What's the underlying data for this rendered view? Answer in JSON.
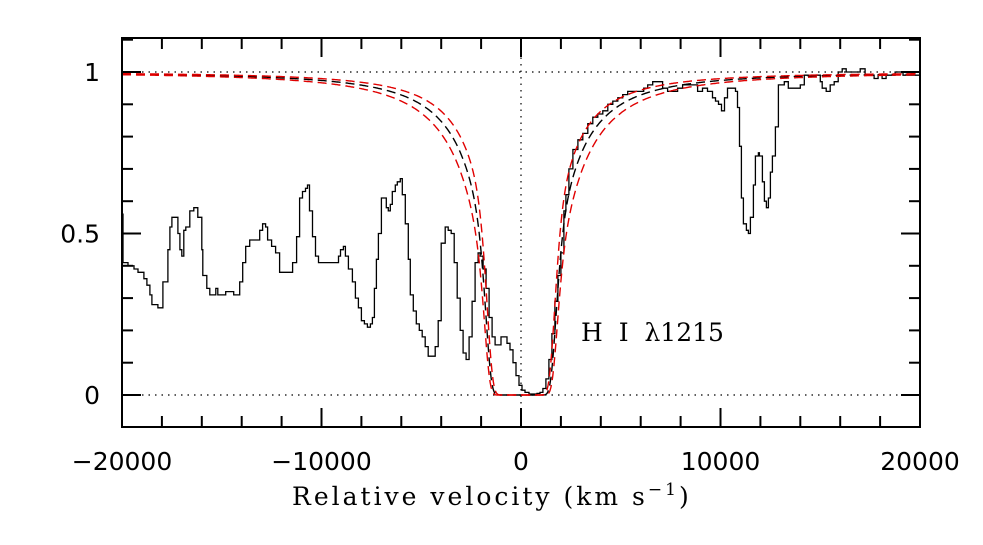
{
  "chart_data": {
    "type": "line",
    "title": "",
    "xlabel": "Relative velocity (km s",
    "xlabel_sup": "−1",
    "xlabel_close": ")",
    "ylabel": "",
    "xlim": [
      -20000,
      20000
    ],
    "ylim": [
      -0.1,
      1.1
    ],
    "x_major_ticks": [
      -20000,
      -10000,
      0,
      10000,
      20000
    ],
    "x_tick_labels": [
      "−20000",
      "−10000",
      "0",
      "10000",
      "20000"
    ],
    "x_minor_step": 2000,
    "y_major_ticks": [
      0,
      0.5,
      1
    ],
    "y_tick_labels": [
      "0",
      "0.5",
      "1"
    ],
    "y_minor_step": 0.1,
    "reference_lines": {
      "horizontal": [
        0,
        1
      ],
      "vertical": [
        0
      ],
      "style": "dotted"
    },
    "annotation": "H  I  λ1215",
    "annotation_position": "lower-middle-right",
    "grid": false,
    "legend": null,
    "series": [
      {
        "name": "observed spectrum",
        "style": "histogram",
        "color": "#000000",
        "points": [
          [
            -20000,
            0.56
          ],
          [
            -19950,
            0.41
          ],
          [
            -19700,
            0.4
          ],
          [
            -19400,
            0.39
          ],
          [
            -19200,
            0.38
          ],
          [
            -18900,
            0.36
          ],
          [
            -18750,
            0.34
          ],
          [
            -18600,
            0.31
          ],
          [
            -18500,
            0.28
          ],
          [
            -18300,
            0.28
          ],
          [
            -18200,
            0.27
          ],
          [
            -17950,
            0.35
          ],
          [
            -17700,
            0.45
          ],
          [
            -17600,
            0.52
          ],
          [
            -17500,
            0.55
          ],
          [
            -17300,
            0.55
          ],
          [
            -17200,
            0.5
          ],
          [
            -17100,
            0.45
          ],
          [
            -17000,
            0.43
          ],
          [
            -16900,
            0.51
          ],
          [
            -16800,
            0.52
          ],
          [
            -16600,
            0.57
          ],
          [
            -16400,
            0.58
          ],
          [
            -16200,
            0.55
          ],
          [
            -16000,
            0.45
          ],
          [
            -15950,
            0.37
          ],
          [
            -15750,
            0.33
          ],
          [
            -15600,
            0.31
          ],
          [
            -15300,
            0.33
          ],
          [
            -15200,
            0.31
          ],
          [
            -14800,
            0.32
          ],
          [
            -14400,
            0.31
          ],
          [
            -14100,
            0.35
          ],
          [
            -13950,
            0.41
          ],
          [
            -13800,
            0.46
          ],
          [
            -13600,
            0.48
          ],
          [
            -13250,
            0.48
          ],
          [
            -13100,
            0.51
          ],
          [
            -12950,
            0.53
          ],
          [
            -12800,
            0.52
          ],
          [
            -12700,
            0.48
          ],
          [
            -12500,
            0.46
          ],
          [
            -12300,
            0.44
          ],
          [
            -12100,
            0.38
          ],
          [
            -11950,
            0.38
          ],
          [
            -11600,
            0.38
          ],
          [
            -11450,
            0.41
          ],
          [
            -11250,
            0.49
          ],
          [
            -11100,
            0.61
          ],
          [
            -10950,
            0.63
          ],
          [
            -10800,
            0.64
          ],
          [
            -10700,
            0.65
          ],
          [
            -10600,
            0.57
          ],
          [
            -10450,
            0.49
          ],
          [
            -10300,
            0.43
          ],
          [
            -10150,
            0.41
          ],
          [
            -9850,
            0.41
          ],
          [
            -9650,
            0.41
          ],
          [
            -9250,
            0.41
          ],
          [
            -9150,
            0.43
          ],
          [
            -9050,
            0.45
          ],
          [
            -8900,
            0.46
          ],
          [
            -8800,
            0.43
          ],
          [
            -8650,
            0.39
          ],
          [
            -8450,
            0.35
          ],
          [
            -8300,
            0.3
          ],
          [
            -8150,
            0.27
          ],
          [
            -8000,
            0.23
          ],
          [
            -7850,
            0.22
          ],
          [
            -7700,
            0.21
          ],
          [
            -7550,
            0.22
          ],
          [
            -7450,
            0.24
          ],
          [
            -7350,
            0.33
          ],
          [
            -7250,
            0.42
          ],
          [
            -7150,
            0.5
          ],
          [
            -7000,
            0.61
          ],
          [
            -6900,
            0.61
          ],
          [
            -6750,
            0.58
          ],
          [
            -6650,
            0.57
          ],
          [
            -6550,
            0.59
          ],
          [
            -6450,
            0.63
          ],
          [
            -6300,
            0.65
          ],
          [
            -6200,
            0.66
          ],
          [
            -6050,
            0.67
          ],
          [
            -5950,
            0.62
          ],
          [
            -5800,
            0.53
          ],
          [
            -5650,
            0.42
          ],
          [
            -5550,
            0.31
          ],
          [
            -5400,
            0.26
          ],
          [
            -5250,
            0.22
          ],
          [
            -5100,
            0.2
          ],
          [
            -4950,
            0.18
          ],
          [
            -4800,
            0.15
          ],
          [
            -4650,
            0.12
          ],
          [
            -4450,
            0.12
          ],
          [
            -4300,
            0.15
          ],
          [
            -4150,
            0.23
          ],
          [
            -4000,
            0.47
          ],
          [
            -3800,
            0.52
          ],
          [
            -3650,
            0.51
          ],
          [
            -3500,
            0.5
          ],
          [
            -3350,
            0.41
          ],
          [
            -3200,
            0.3
          ],
          [
            -3050,
            0.2
          ],
          [
            -2900,
            0.13
          ],
          [
            -2750,
            0.11
          ],
          [
            -2600,
            0.18
          ],
          [
            -2450,
            0.29
          ],
          [
            -2300,
            0.41
          ],
          [
            -2150,
            0.44
          ],
          [
            -2050,
            0.43
          ],
          [
            -1900,
            0.39
          ],
          [
            -1750,
            0.33
          ],
          [
            -1600,
            0.24
          ],
          [
            -1450,
            0.18
          ],
          [
            -1300,
            0.155
          ],
          [
            -1150,
            0.155
          ],
          [
            -1000,
            0.18
          ],
          [
            -850,
            0.18
          ],
          [
            -700,
            0.16
          ],
          [
            -550,
            0.14
          ],
          [
            -400,
            0.1
          ],
          [
            -250,
            0.06
          ],
          [
            -100,
            0.03
          ],
          [
            50,
            0.015
          ],
          [
            200,
            0.008
          ],
          [
            400,
            0.003
          ],
          [
            600,
            0.003
          ],
          [
            800,
            0.005
          ],
          [
            950,
            0.008
          ],
          [
            1100,
            0.02
          ],
          [
            1250,
            0.05
          ],
          [
            1400,
            0.11
          ],
          [
            1550,
            0.19
          ],
          [
            1700,
            0.29
          ],
          [
            1850,
            0.37
          ],
          [
            2000,
            0.44
          ],
          [
            2150,
            0.57
          ],
          [
            2250,
            0.62
          ],
          [
            2400,
            0.7
          ],
          [
            2600,
            0.76
          ],
          [
            2850,
            0.79
          ],
          [
            3100,
            0.81
          ],
          [
            3350,
            0.84
          ],
          [
            3600,
            0.86
          ],
          [
            3850,
            0.87
          ],
          [
            4100,
            0.88
          ],
          [
            4350,
            0.9
          ],
          [
            4600,
            0.91
          ],
          [
            4850,
            0.92
          ],
          [
            5100,
            0.93
          ],
          [
            5350,
            0.94
          ],
          [
            5600,
            0.94
          ],
          [
            5850,
            0.94
          ],
          [
            6150,
            0.95
          ],
          [
            6350,
            0.96
          ],
          [
            6600,
            0.97
          ],
          [
            6850,
            0.97
          ],
          [
            7100,
            0.95
          ],
          [
            7350,
            0.94
          ],
          [
            7600,
            0.94
          ],
          [
            7850,
            0.95
          ],
          [
            8100,
            0.96
          ],
          [
            8350,
            0.96
          ],
          [
            8600,
            0.96
          ],
          [
            8850,
            0.94
          ],
          [
            9100,
            0.95
          ],
          [
            9350,
            0.94
          ],
          [
            9600,
            0.92
          ],
          [
            9750,
            0.91
          ],
          [
            9900,
            0.9
          ],
          [
            10050,
            0.88
          ],
          [
            10200,
            0.92
          ],
          [
            10350,
            0.95
          ],
          [
            10550,
            0.95
          ],
          [
            10750,
            0.94
          ],
          [
            10850,
            0.89
          ],
          [
            10950,
            0.77
          ],
          [
            11050,
            0.61
          ],
          [
            11150,
            0.53
          ],
          [
            11300,
            0.51
          ],
          [
            11400,
            0.5
          ],
          [
            11500,
            0.55
          ],
          [
            11650,
            0.65
          ],
          [
            11750,
            0.74
          ],
          [
            11900,
            0.75
          ],
          [
            11950,
            0.74
          ],
          [
            12100,
            0.66
          ],
          [
            12200,
            0.6
          ],
          [
            12300,
            0.58
          ],
          [
            12400,
            0.61
          ],
          [
            12500,
            0.69
          ],
          [
            12600,
            0.74
          ],
          [
            12750,
            0.83
          ],
          [
            12900,
            0.96
          ],
          [
            13050,
            0.96
          ],
          [
            13200,
            0.97
          ],
          [
            13400,
            0.95
          ],
          [
            13600,
            0.95
          ],
          [
            13800,
            0.95
          ],
          [
            14000,
            0.96
          ],
          [
            14200,
            0.99
          ],
          [
            14600,
            0.99
          ],
          [
            14850,
            0.99
          ],
          [
            15000,
            0.97
          ],
          [
            15100,
            0.95
          ],
          [
            15300,
            0.94
          ],
          [
            15500,
            0.96
          ],
          [
            15700,
            0.97
          ],
          [
            15900,
            1.0
          ],
          [
            16100,
            1.01
          ],
          [
            16300,
            1.0
          ],
          [
            16500,
            1.0
          ],
          [
            16800,
            1.0
          ],
          [
            17000,
            1.01
          ],
          [
            17250,
            0.99
          ],
          [
            17500,
            0.99
          ],
          [
            17700,
            0.98
          ],
          [
            17900,
            0.99
          ],
          [
            18100,
            0.98
          ],
          [
            18300,
            0.99
          ],
          [
            18550,
            0.99
          ],
          [
            18750,
            1.0
          ],
          [
            18950,
            1.0
          ],
          [
            19150,
            0.99
          ],
          [
            19400,
            0.99
          ],
          [
            19600,
            0.99
          ],
          [
            19800,
            0.99
          ],
          [
            20000,
            0.99
          ]
        ]
      },
      {
        "name": "model best fit",
        "style": "dashed",
        "color": "#000000",
        "damping_scale": 1.0
      },
      {
        "name": "model lower bound",
        "style": "dashed",
        "color": "#e00000",
        "damping_scale": 0.78
      },
      {
        "name": "model upper bound",
        "style": "dashed",
        "color": "#e00000",
        "damping_scale": 1.28
      }
    ]
  }
}
